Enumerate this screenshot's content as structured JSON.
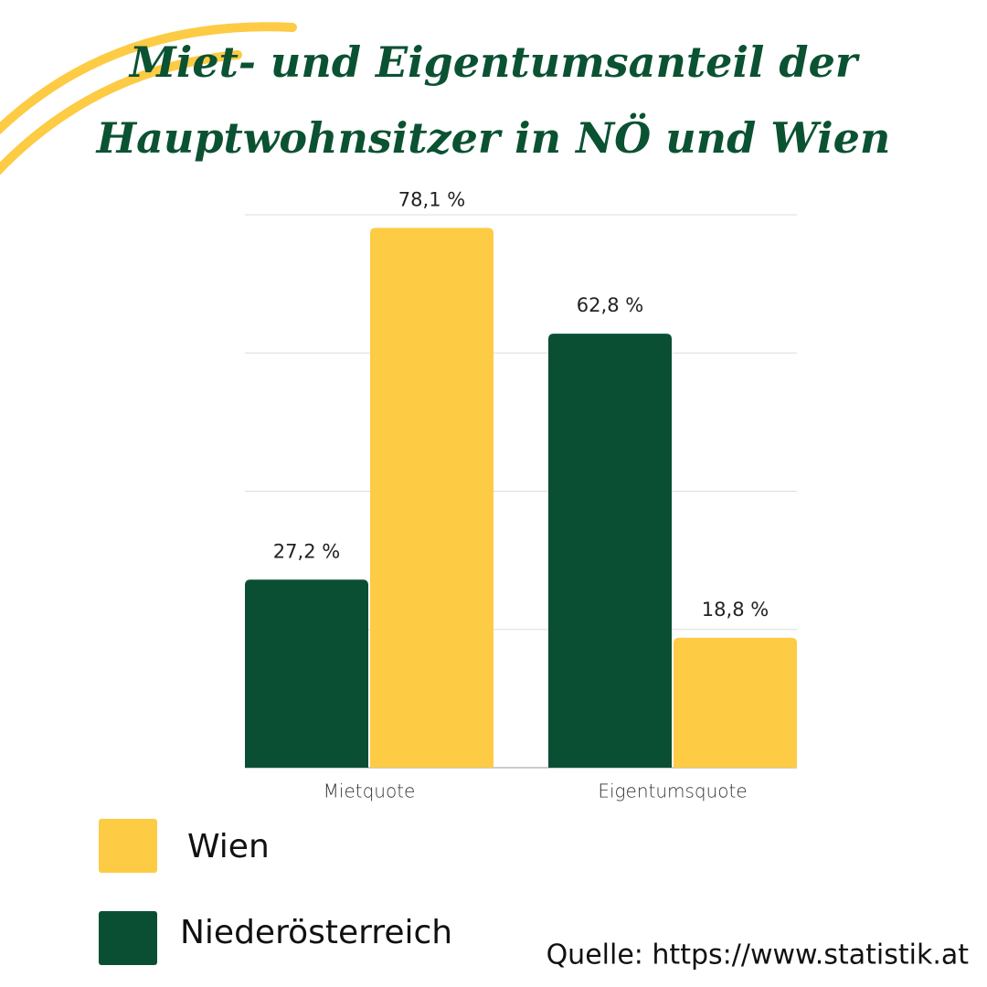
{
  "chart_data": {
    "type": "bar",
    "title_lines": [
      "Miet- und Eigentumsanteil der",
      "Hauptwohnsitzer in NÖ und Wien"
    ],
    "categories": [
      "Mietquote",
      "Eigentumsquote"
    ],
    "series": [
      {
        "name": "Niederösterreich",
        "color": "#0a4f33",
        "values": [
          27.2,
          62.8
        ],
        "value_labels": [
          "27,2 %",
          "62,8 %"
        ]
      },
      {
        "name": "Wien",
        "color": "#fdcb44",
        "values": [
          78.1,
          18.8
        ],
        "value_labels": [
          "78,1 %",
          "18,8 %"
        ]
      }
    ],
    "ylim": [
      0,
      80
    ],
    "yticks": [
      0,
      20,
      40,
      60,
      80
    ],
    "grid": true,
    "source": "Quelle: https://www.statistik.at"
  }
}
